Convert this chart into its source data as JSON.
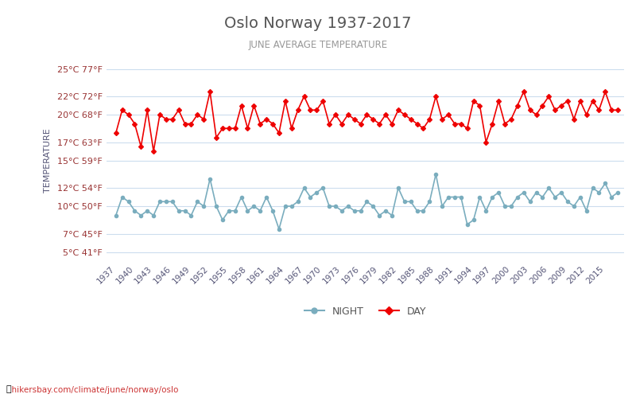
{
  "title": "Oslo Norway 1937-2017",
  "subtitle": "JUNE AVERAGE TEMPERATURE",
  "xlabel": "",
  "ylabel": "TEMPERATURE",
  "watermark": "hikersbay.com/climate/june/norway/oslo",
  "title_color": "#555555",
  "subtitle_color": "#888888",
  "ylabel_color": "#555577",
  "tick_color": "#993333",
  "background_color": "#ffffff",
  "grid_color": "#ccddee",
  "years": [
    1937,
    1938,
    1939,
    1940,
    1941,
    1942,
    1943,
    1944,
    1945,
    1946,
    1947,
    1948,
    1949,
    1950,
    1951,
    1952,
    1953,
    1954,
    1955,
    1956,
    1957,
    1958,
    1959,
    1960,
    1961,
    1962,
    1963,
    1964,
    1965,
    1966,
    1967,
    1968,
    1969,
    1970,
    1971,
    1972,
    1973,
    1974,
    1975,
    1976,
    1977,
    1978,
    1979,
    1980,
    1981,
    1982,
    1983,
    1984,
    1985,
    1986,
    1987,
    1988,
    1989,
    1990,
    1991,
    1992,
    1993,
    1994,
    1995,
    1996,
    1997,
    1998,
    1999,
    2000,
    2001,
    2002,
    2003,
    2004,
    2005,
    2006,
    2007,
    2008,
    2009,
    2010,
    2011,
    2012,
    2013,
    2014,
    2015,
    2016,
    2017
  ],
  "day": [
    18.0,
    20.5,
    20.0,
    19.0,
    16.5,
    20.5,
    16.0,
    20.0,
    19.5,
    19.5,
    20.5,
    19.0,
    19.0,
    20.0,
    19.5,
    22.5,
    17.5,
    18.5,
    18.5,
    18.5,
    21.0,
    18.5,
    21.0,
    19.0,
    19.5,
    19.0,
    18.0,
    21.5,
    18.5,
    20.5,
    22.0,
    20.5,
    20.5,
    21.5,
    19.0,
    20.0,
    19.0,
    20.0,
    19.5,
    19.0,
    20.0,
    19.5,
    19.0,
    20.0,
    19.0,
    20.5,
    20.0,
    19.5,
    19.0,
    18.5,
    19.5,
    22.0,
    19.5,
    20.0,
    19.0,
    19.0,
    18.5,
    21.5,
    21.0,
    17.0,
    19.0,
    21.5,
    19.0,
    19.5,
    21.0,
    22.5,
    20.5,
    20.0,
    21.0,
    22.0,
    20.5,
    21.0,
    21.5,
    19.5,
    21.5,
    20.0,
    21.5,
    20.5,
    22.5,
    20.5,
    20.5
  ],
  "night": [
    9.0,
    11.0,
    10.5,
    9.5,
    9.0,
    9.5,
    9.0,
    10.5,
    10.5,
    10.5,
    9.5,
    9.5,
    9.0,
    10.5,
    10.0,
    13.0,
    10.0,
    8.5,
    9.5,
    9.5,
    11.0,
    9.5,
    10.0,
    9.5,
    11.0,
    9.5,
    7.5,
    10.0,
    10.0,
    10.5,
    12.0,
    11.0,
    11.5,
    12.0,
    10.0,
    10.0,
    9.5,
    10.0,
    9.5,
    9.5,
    10.5,
    10.0,
    9.0,
    9.5,
    9.0,
    12.0,
    10.5,
    10.5,
    9.5,
    9.5,
    10.5,
    13.5,
    10.0,
    11.0,
    11.0,
    11.0,
    8.0,
    8.5,
    11.0,
    9.5,
    11.0,
    11.5,
    10.0,
    10.0,
    11.0,
    11.5,
    10.5,
    11.5,
    11.0,
    12.0,
    11.0,
    11.5,
    10.5,
    10.0,
    11.0,
    9.5,
    12.0,
    11.5,
    12.5,
    11.0,
    11.5
  ],
  "day_color": "#ee0000",
  "night_color": "#7aadbe",
  "day_marker": "D",
  "night_marker": "o",
  "marker_size": 3,
  "line_width": 1.2,
  "yticks_c": [
    5,
    7,
    10,
    12,
    15,
    17,
    20,
    22,
    25
  ],
  "yticks_f": [
    41,
    45,
    50,
    54,
    59,
    63,
    68,
    72,
    77
  ],
  "ylim": [
    4,
    26
  ],
  "xtick_years": [
    1937,
    1940,
    1943,
    1946,
    1949,
    1952,
    1955,
    1958,
    1961,
    1964,
    1967,
    1970,
    1973,
    1976,
    1979,
    1982,
    1985,
    1988,
    1991,
    1994,
    1997,
    2000,
    2003,
    2006,
    2009,
    2012,
    2015
  ]
}
